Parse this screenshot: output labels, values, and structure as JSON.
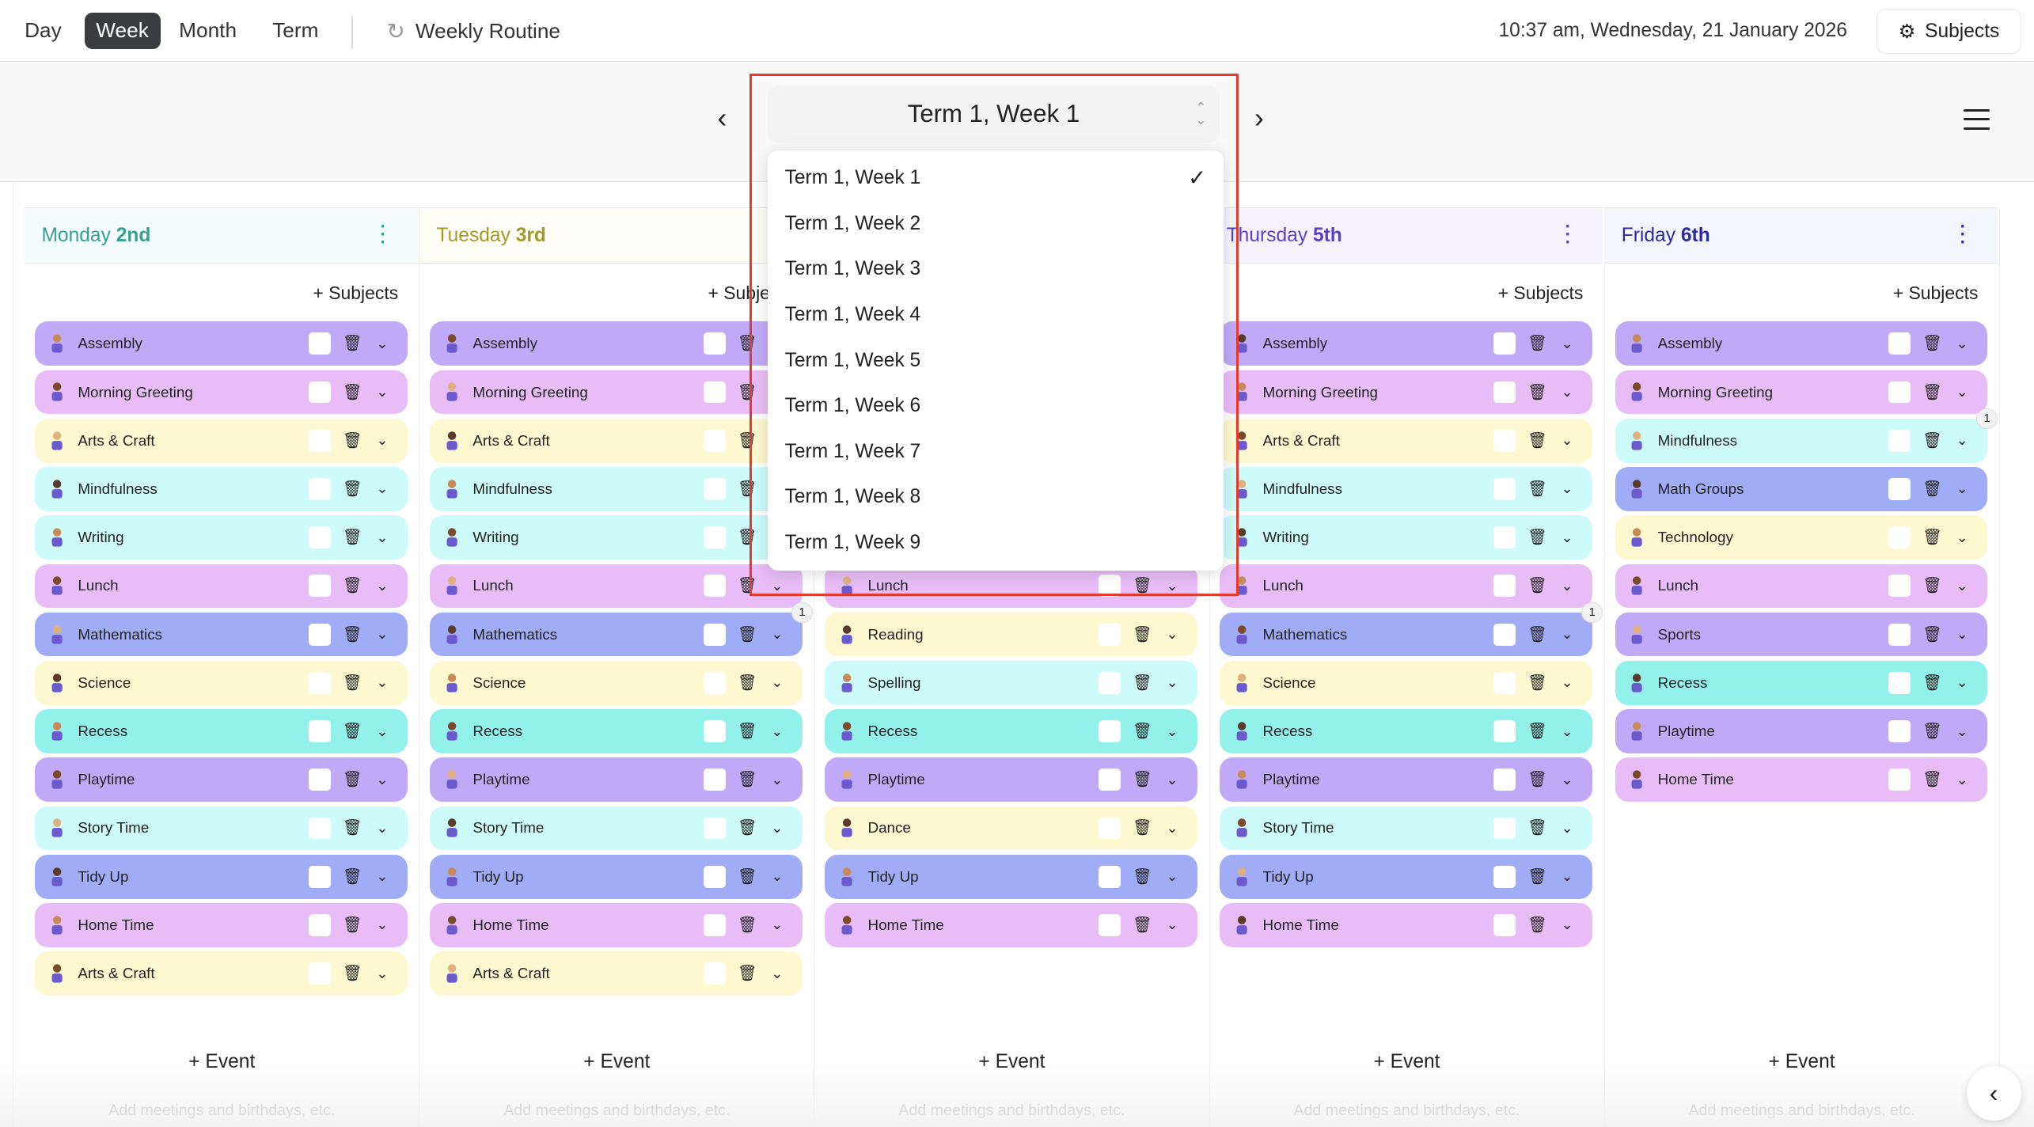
{
  "topbar": {
    "tabs": [
      "Day",
      "Week",
      "Month",
      "Term"
    ],
    "active_tab": "Week",
    "routine_label": "Weekly Routine",
    "datetime": "10:37 am, Wednesday, 21 January 2026",
    "subjects_label": "Subjects"
  },
  "nav": {
    "selected_week": "Term 1, Week 1",
    "options": [
      "Term 1, Week 1",
      "Term 1, Week 2",
      "Term 1, Week 3",
      "Term 1, Week 4",
      "Term 1, Week 5",
      "Term 1, Week 6",
      "Term 1, Week 7",
      "Term 1, Week 8",
      "Term 1, Week 9"
    ]
  },
  "colors": {
    "purple": "#c0aaf7",
    "pink": "#e8bdf7",
    "yellow": "#fdf8d0",
    "lightcyan": "#cdfbf9",
    "teal": "#93f1ec",
    "blue": "#a0acf5",
    "highlight": "#e53b2f"
  },
  "add_subjects_label": "Subjects",
  "add_event_label": "Event",
  "event_hint": "Add meetings and birthdays, etc.",
  "days": [
    {
      "day": "Monday",
      "date": "2nd",
      "color": "#3a9e8e",
      "bg": "#f3fdfd",
      "start": 0,
      "items": [
        {
          "label": "Assembly",
          "c": "purple"
        },
        {
          "label": "Morning Greeting",
          "c": "pink"
        },
        {
          "label": "Arts & Craft",
          "c": "yellow"
        },
        {
          "label": "Mindfulness",
          "c": "lightcyan"
        },
        {
          "label": "Writing",
          "c": "lightcyan"
        },
        {
          "label": "Lunch",
          "c": "pink"
        },
        {
          "label": "Mathematics",
          "c": "blue"
        },
        {
          "label": "Science",
          "c": "yellow"
        },
        {
          "label": "Recess",
          "c": "teal"
        },
        {
          "label": "Playtime",
          "c": "purple"
        },
        {
          "label": "Story Time",
          "c": "lightcyan"
        },
        {
          "label": "Tidy Up",
          "c": "blue"
        },
        {
          "label": "Home Time",
          "c": "pink"
        },
        {
          "label": "Arts & Craft",
          "c": "yellow"
        }
      ]
    },
    {
      "day": "Tuesday",
      "date": "3rd",
      "color": "#a39a2a",
      "bg": "#fefef6",
      "start": 0,
      "items": [
        {
          "label": "Assembly",
          "c": "purple"
        },
        {
          "label": "Morning Greeting",
          "c": "pink"
        },
        {
          "label": "Arts & Craft",
          "c": "yellow"
        },
        {
          "label": "Mindfulness",
          "c": "lightcyan"
        },
        {
          "label": "Writing",
          "c": "lightcyan"
        },
        {
          "label": "Lunch",
          "c": "pink"
        },
        {
          "label": "Mathematics",
          "c": "blue",
          "badge": "1"
        },
        {
          "label": "Science",
          "c": "yellow"
        },
        {
          "label": "Recess",
          "c": "teal"
        },
        {
          "label": "Playtime",
          "c": "purple"
        },
        {
          "label": "Story Time",
          "c": "lightcyan"
        },
        {
          "label": "Tidy Up",
          "c": "blue"
        },
        {
          "label": "Home Time",
          "c": "pink"
        },
        {
          "label": "Arts & Craft",
          "c": "yellow"
        }
      ]
    },
    {
      "day": "",
      "date": "",
      "color": "#333",
      "bg": "#fff",
      "start": 5,
      "items": [
        {
          "label": "Lunch",
          "c": "pink"
        },
        {
          "label": "Reading",
          "c": "yellow"
        },
        {
          "label": "Spelling",
          "c": "lightcyan"
        },
        {
          "label": "Recess",
          "c": "teal"
        },
        {
          "label": "Playtime",
          "c": "purple"
        },
        {
          "label": "Dance",
          "c": "yellow"
        },
        {
          "label": "Tidy Up",
          "c": "blue"
        },
        {
          "label": "Home Time",
          "c": "pink"
        }
      ]
    },
    {
      "day": "Thursday",
      "date": "5th",
      "color": "#5b3fc8",
      "bg": "#f6f3fe",
      "start": 0,
      "items": [
        {
          "label": "Assembly",
          "c": "purple"
        },
        {
          "label": "Morning Greeting",
          "c": "pink"
        },
        {
          "label": "Arts & Craft",
          "c": "yellow"
        },
        {
          "label": "Mindfulness",
          "c": "lightcyan"
        },
        {
          "label": "Writing",
          "c": "lightcyan"
        },
        {
          "label": "Lunch",
          "c": "pink"
        },
        {
          "label": "Mathematics",
          "c": "blue",
          "badge": "1"
        },
        {
          "label": "Science",
          "c": "yellow"
        },
        {
          "label": "Recess",
          "c": "teal"
        },
        {
          "label": "Playtime",
          "c": "purple"
        },
        {
          "label": "Story Time",
          "c": "lightcyan"
        },
        {
          "label": "Tidy Up",
          "c": "blue"
        },
        {
          "label": "Home Time",
          "c": "pink"
        }
      ]
    },
    {
      "day": "Friday",
      "date": "6th",
      "color": "#2b2ba0",
      "bg": "#f4f6fe",
      "start": 0,
      "items": [
        {
          "label": "Assembly",
          "c": "purple"
        },
        {
          "label": "Morning Greeting",
          "c": "pink"
        },
        {
          "label": "Mindfulness",
          "c": "lightcyan",
          "badge": "1"
        },
        {
          "label": "Math Groups",
          "c": "blue"
        },
        {
          "label": "Technology",
          "c": "yellow"
        },
        {
          "label": "Lunch",
          "c": "pink"
        },
        {
          "label": "Sports",
          "c": "purple"
        },
        {
          "label": "Recess",
          "c": "teal"
        },
        {
          "label": "Playtime",
          "c": "purple"
        },
        {
          "label": "Home Time",
          "c": "pink"
        }
      ]
    }
  ]
}
